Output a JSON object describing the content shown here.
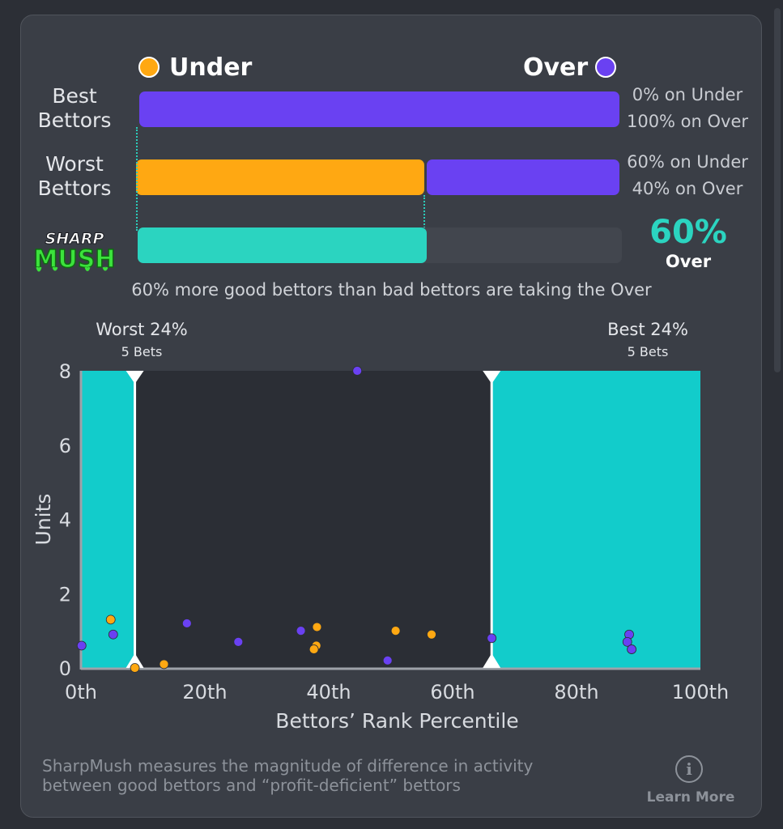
{
  "legend": {
    "under_label": "Under",
    "over_label": "Over"
  },
  "colors": {
    "under": "#ffa812",
    "over": "#6a41f2",
    "sharp": "#2bd4c0",
    "band": "#12cccb",
    "plot_bg": "#2b2e35",
    "empty_track": "#42464e"
  },
  "rows": [
    {
      "label_line1": "Best",
      "label_line2": "Bettors",
      "under_text": "0% on Under",
      "over_text": "100% on Over",
      "under_pct": 0,
      "over_pct": 100
    },
    {
      "label_line1": "Worst",
      "label_line2": "Bettors",
      "under_text": "60% on Under",
      "over_text": "40% on Over",
      "under_pct": 60,
      "over_pct": 40
    }
  ],
  "sharpmush": {
    "logo_line1": "SHARP",
    "logo_line2": "MUSH",
    "fill_pct": 60,
    "value": "60%",
    "side": "Over",
    "summary": "60% more good bettors than bad bettors are taking the Over"
  },
  "chart_data": {
    "type": "scatter",
    "xlabel": "Bettors’ Rank Percentile",
    "ylabel": "Units",
    "xlim": [
      0,
      100
    ],
    "ylim": [
      0,
      8
    ],
    "x_ticks": [
      "0th",
      "20th",
      "40th",
      "60th",
      "80th",
      "100th"
    ],
    "y_ticks": [
      "0",
      "2",
      "4",
      "6",
      "8"
    ],
    "worst_range": {
      "label": "Worst 24%",
      "sub": "5 Bets",
      "x_start": 0,
      "x_end": 8.7
    },
    "best_range": {
      "label": "Best 24%",
      "sub": "5 Bets",
      "x_start": 66.3,
      "x_end": 100
    },
    "series": [
      {
        "name": "Under",
        "points": [
          {
            "x": 4.8,
            "y": 1.3
          },
          {
            "x": 8.7,
            "y": 0.0
          },
          {
            "x": 13.4,
            "y": 0.1
          },
          {
            "x": 38.1,
            "y": 1.1
          },
          {
            "x": 38.0,
            "y": 0.6
          },
          {
            "x": 37.6,
            "y": 0.5
          },
          {
            "x": 50.8,
            "y": 1.0
          },
          {
            "x": 56.6,
            "y": 0.9
          }
        ]
      },
      {
        "name": "Over",
        "points": [
          {
            "x": 0.1,
            "y": 0.6
          },
          {
            "x": 5.2,
            "y": 0.9
          },
          {
            "x": 17.1,
            "y": 1.2
          },
          {
            "x": 25.4,
            "y": 0.7
          },
          {
            "x": 35.5,
            "y": 1.0
          },
          {
            "x": 44.6,
            "y": 8.0
          },
          {
            "x": 49.5,
            "y": 0.2
          },
          {
            "x": 66.3,
            "y": 0.8
          },
          {
            "x": 88.5,
            "y": 0.9
          },
          {
            "x": 88.2,
            "y": 0.7
          },
          {
            "x": 88.9,
            "y": 0.5
          }
        ]
      }
    ]
  },
  "footer": {
    "text_line1": "SharpMush measures the magnitude of difference in activity",
    "text_line2": "between good bettors and “profit-deficient” bettors",
    "info_glyph": "i",
    "learn_more": "Learn More"
  }
}
